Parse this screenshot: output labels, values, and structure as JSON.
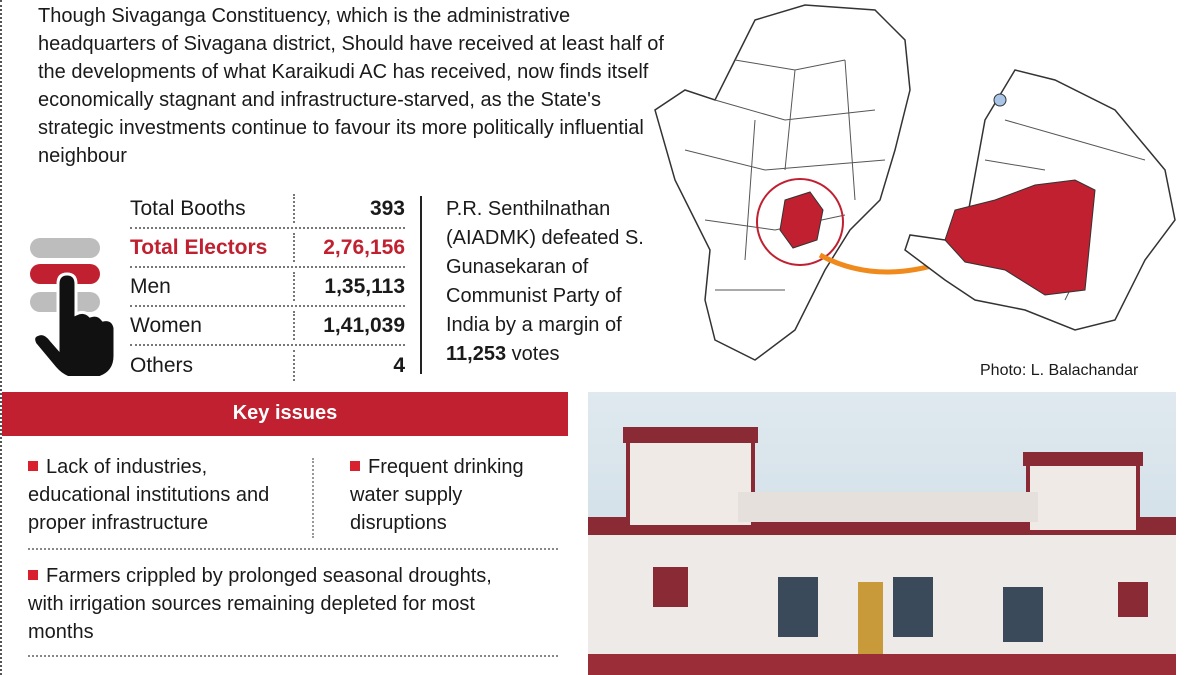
{
  "intro": "Though Sivaganga Constituency, which is the administrative headquarters of Sivagana district, Should have received at least half of the developments of what Karaikudi AC has received, now finds itself economically stagnant and infrastructure-starved, as the State's strategic investments continue to favour its more politically influential neighbour",
  "stats": [
    {
      "label": "Total Booths",
      "value": "393"
    },
    {
      "label": "Total Electors",
      "value": "2,76,156"
    },
    {
      "label": "Men",
      "value": "1,35,113"
    },
    {
      "label": "Women",
      "value": "1,41,039"
    },
    {
      "label": "Others",
      "value": "4"
    }
  ],
  "result": {
    "text": "P.R. Senthilnathan (AIADMK) defeated S. Gunasekaran of Communist Party of India by a margin of",
    "margin": "11,253",
    "suffix": " votes"
  },
  "photo_credit": "Photo: L. Balachandar",
  "key_issues": {
    "title": "Key issues",
    "items": [
      "Lack of industries, educational institutions and proper infrastructure",
      "Frequent drinking water supply disruptions",
      "Farmers crippled by prolonged seasonal droughts, with irrigation sources remaining depleted for most months"
    ]
  },
  "colors": {
    "accent": "#c0202f",
    "highlight_region": "#c0202f",
    "arrow": "#f08a1c"
  },
  "icons": {
    "voting": "hand-pointer-icon"
  }
}
